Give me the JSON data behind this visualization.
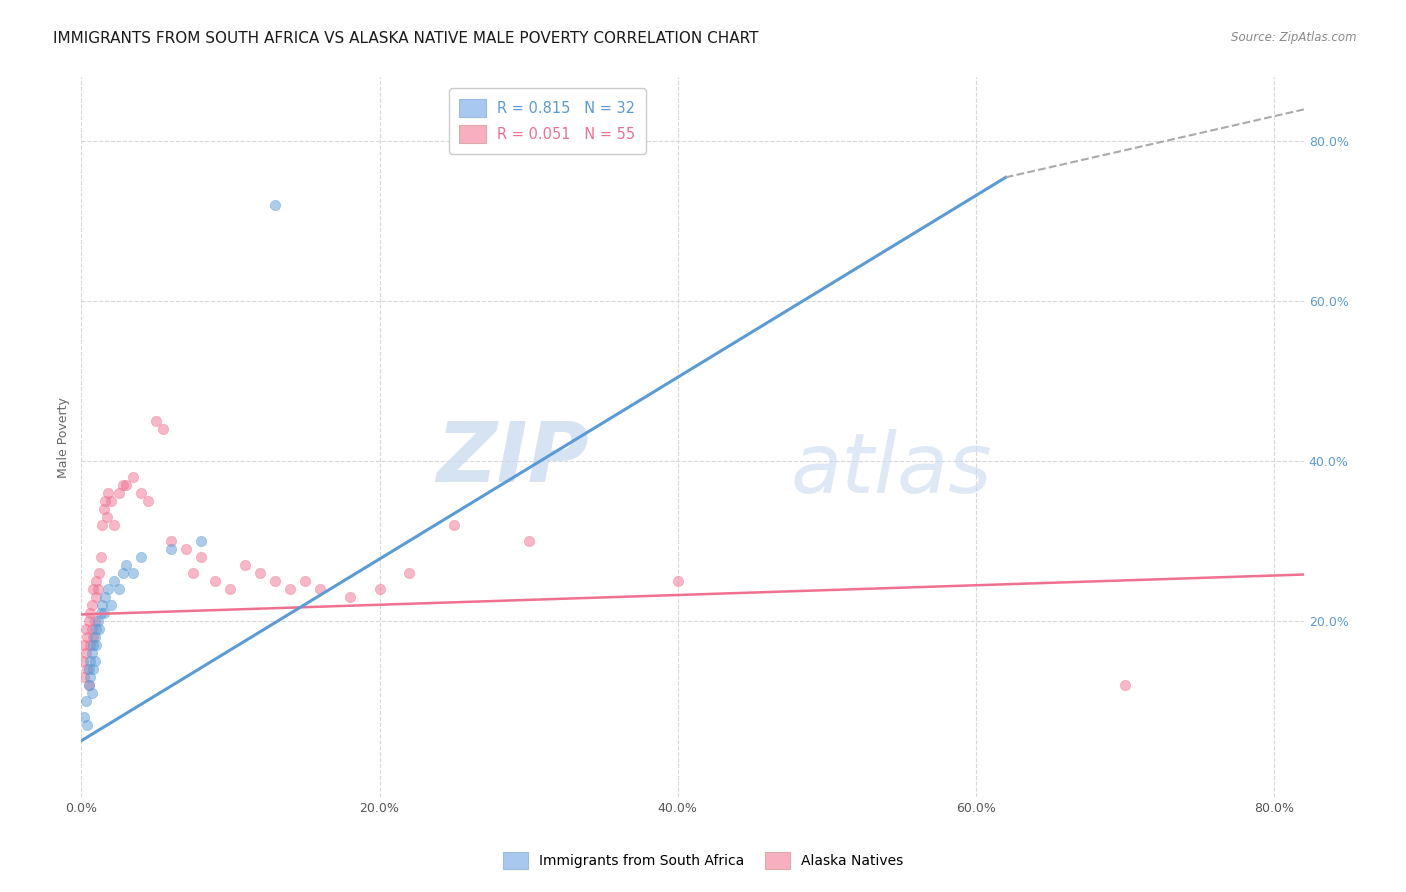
{
  "title": "IMMIGRANTS FROM SOUTH AFRICA VS ALASKA NATIVE MALE POVERTY CORRELATION CHART",
  "source": "Source: ZipAtlas.com",
  "ylabel": "Male Poverty",
  "xlim": [
    0.0,
    0.82
  ],
  "ylim": [
    -0.02,
    0.88
  ],
  "x_ticks": [
    0.0,
    0.2,
    0.4,
    0.6,
    0.8
  ],
  "x_tick_labels": [
    "0.0%",
    "20.0%",
    "40.0%",
    "60.0%",
    "80.0%"
  ],
  "y_ticks_right": [
    0.2,
    0.4,
    0.6,
    0.8
  ],
  "y_tick_labels_right": [
    "20.0%",
    "40.0%",
    "60.0%",
    "80.0%"
  ],
  "blue_color": "#5b9bd5",
  "pink_color": "#f07090",
  "legend_box_blue": "#a8c8f0",
  "legend_box_pink": "#f8b0c0",
  "trendline_blue": [
    [
      0.0,
      0.05
    ],
    [
      0.62,
      0.755
    ]
  ],
  "trendline_blue_dashed": [
    [
      0.62,
      0.755
    ],
    [
      0.82,
      0.84
    ]
  ],
  "trendline_pink": [
    [
      0.0,
      0.208
    ],
    [
      0.82,
      0.258
    ]
  ],
  "blue_scatter_x": [
    0.002,
    0.003,
    0.004,
    0.005,
    0.005,
    0.006,
    0.006,
    0.007,
    0.007,
    0.008,
    0.008,
    0.009,
    0.009,
    0.01,
    0.01,
    0.011,
    0.012,
    0.013,
    0.014,
    0.015,
    0.016,
    0.018,
    0.02,
    0.022,
    0.025,
    0.028,
    0.03,
    0.035,
    0.04,
    0.06,
    0.08,
    0.13
  ],
  "blue_scatter_y": [
    0.08,
    0.1,
    0.07,
    0.12,
    0.14,
    0.13,
    0.15,
    0.11,
    0.16,
    0.14,
    0.17,
    0.15,
    0.18,
    0.17,
    0.19,
    0.2,
    0.19,
    0.21,
    0.22,
    0.21,
    0.23,
    0.24,
    0.22,
    0.25,
    0.24,
    0.26,
    0.27,
    0.26,
    0.28,
    0.29,
    0.3,
    0.72
  ],
  "pink_scatter_x": [
    0.001,
    0.002,
    0.002,
    0.003,
    0.003,
    0.004,
    0.004,
    0.005,
    0.005,
    0.006,
    0.006,
    0.007,
    0.007,
    0.008,
    0.008,
    0.009,
    0.01,
    0.01,
    0.011,
    0.012,
    0.013,
    0.014,
    0.015,
    0.016,
    0.017,
    0.018,
    0.02,
    0.022,
    0.025,
    0.028,
    0.03,
    0.035,
    0.04,
    0.045,
    0.05,
    0.055,
    0.06,
    0.07,
    0.075,
    0.08,
    0.09,
    0.1,
    0.11,
    0.12,
    0.13,
    0.14,
    0.15,
    0.16,
    0.18,
    0.2,
    0.22,
    0.25,
    0.3,
    0.4,
    0.7
  ],
  "pink_scatter_y": [
    0.15,
    0.13,
    0.17,
    0.16,
    0.19,
    0.14,
    0.18,
    0.12,
    0.2,
    0.17,
    0.21,
    0.19,
    0.22,
    0.18,
    0.24,
    0.2,
    0.23,
    0.25,
    0.24,
    0.26,
    0.28,
    0.32,
    0.34,
    0.35,
    0.33,
    0.36,
    0.35,
    0.32,
    0.36,
    0.37,
    0.37,
    0.38,
    0.36,
    0.35,
    0.45,
    0.44,
    0.3,
    0.29,
    0.26,
    0.28,
    0.25,
    0.24,
    0.27,
    0.26,
    0.25,
    0.24,
    0.25,
    0.24,
    0.23,
    0.24,
    0.26,
    0.32,
    0.3,
    0.25,
    0.12
  ],
  "watermark_zip": "ZIP",
  "watermark_atlas": "atlas",
  "background_color": "#ffffff",
  "grid_color": "#d8d8d8",
  "title_fontsize": 11,
  "axis_label_fontsize": 9,
  "tick_fontsize": 9,
  "scatter_size": 55,
  "scatter_alpha": 0.5,
  "bottom_legend_labels": [
    "Immigrants from South Africa",
    "Alaska Natives"
  ]
}
